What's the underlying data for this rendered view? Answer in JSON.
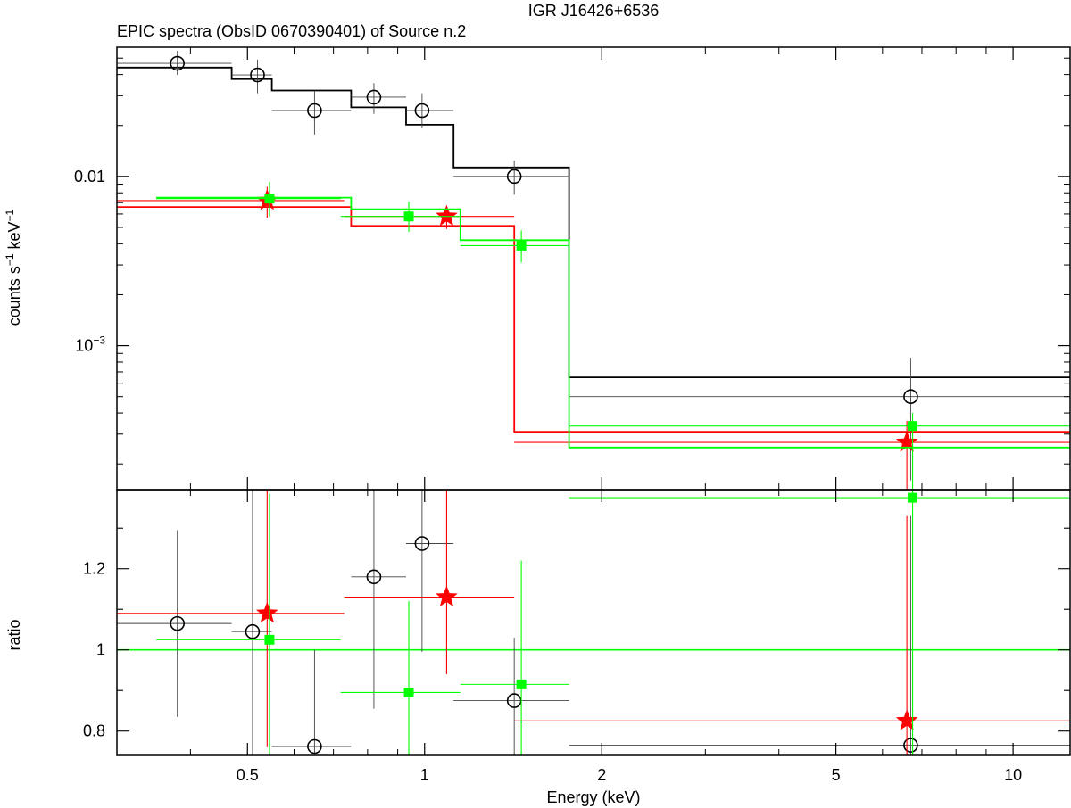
{
  "header": {
    "title": "IGR J16426+6536",
    "subtitle": "EPIC spectra (ObsID 0670390401) of Source n.2"
  },
  "axes": {
    "xlabel": "Energy (keV)",
    "top_ylabel_main": "counts s",
    "top_ylabel_sup1": "−1",
    "top_ylabel_mid": " keV",
    "top_ylabel_sup2": "−1",
    "bottom_ylabel": "ratio",
    "xticks": [
      "0.5",
      "1",
      "2",
      "5",
      "10"
    ],
    "top_yticks": [
      {
        "main": "0.01",
        "sup": ""
      },
      {
        "main": "10",
        "sup": "−3"
      }
    ],
    "bottom_yticks": [
      "1.2",
      "1",
      "0.8"
    ]
  },
  "colors": {
    "black": "#000000",
    "red": "#ff0000",
    "green": "#00ff00",
    "axis": "#000000"
  },
  "chart_data": [
    {
      "type": "scatter",
      "panel": "spectrum",
      "title": "EPIC spectra (ObsID 0670390401) of Source n.2",
      "xlabel": "Energy (keV)",
      "ylabel": "counts s−1 keV−1",
      "xscale": "log",
      "yscale": "log",
      "xlim": [
        0.3,
        12.5
      ],
      "ylim": [
        0.000141,
        0.058
      ],
      "grid": false,
      "series": [
        {
          "color": "#000000",
          "marker": "circle",
          "points": [
            {
              "x": 0.38,
              "xlo": 0.3,
              "xhi": 0.47,
              "y": 0.0466,
              "ylo": 0.0397,
              "yhi": 0.0552
            },
            {
              "x": 0.52,
              "xlo": 0.47,
              "xhi": 0.55,
              "y": 0.0398,
              "ylo": 0.031,
              "yhi": 0.049
            },
            {
              "x": 0.65,
              "xlo": 0.55,
              "xhi": 0.75,
              "y": 0.0245,
              "ylo": 0.0177,
              "yhi": 0.032
            },
            {
              "x": 0.82,
              "xlo": 0.75,
              "xhi": 0.93,
              "y": 0.0294,
              "ylo": 0.0234,
              "yhi": 0.0356
            },
            {
              "x": 0.99,
              "xlo": 0.93,
              "xhi": 1.12,
              "y": 0.0245,
              "ylo": 0.0192,
              "yhi": 0.031
            },
            {
              "x": 1.42,
              "xlo": 1.12,
              "xhi": 1.76,
              "y": 0.01,
              "ylo": 0.0078,
              "yhi": 0.0124
            },
            {
              "x": 6.7,
              "xlo": 1.76,
              "xhi": 12.5,
              "y": 0.0005,
              "ylo": 0.00016,
              "yhi": 0.00085
            }
          ],
          "model": {
            "edges": [
              0.3,
              0.47,
              0.55,
              0.75,
              0.93,
              1.12,
              1.76,
              12.5
            ],
            "values": [
              0.044,
              0.0376,
              0.0322,
              0.0256,
              0.0202,
              0.0113,
              0.00065
            ]
          }
        },
        {
          "color": "#ff0000",
          "marker": "star",
          "points": [
            {
              "x": 0.54,
              "xlo": 0.3,
              "xhi": 0.73,
              "y": 0.0072,
              "ylo": 0.0057,
              "yhi": 0.0087
            },
            {
              "x": 1.09,
              "xlo": 0.73,
              "xhi": 1.42,
              "y": 0.0058,
              "ylo": 0.0049,
              "yhi": 0.0067
            },
            {
              "x": 6.6,
              "xlo": 1.42,
              "xhi": 12.5,
              "y": 0.000268,
              "ylo": 0.000141,
              "yhi": 0.00036
            }
          ],
          "model": {
            "edges": [
              0.3,
              0.73,
              0.75,
              1.42,
              12.5
            ],
            "values": [
              0.0066,
              0.0066,
              0.0051,
              0.00031
            ]
          }
        },
        {
          "color": "#00ff00",
          "marker": "square",
          "points": [
            {
              "x": 0.545,
              "xlo": 0.35,
              "xhi": 0.72,
              "y": 0.0074,
              "ylo": 0.0058,
              "yhi": 0.0093
            },
            {
              "x": 0.94,
              "xlo": 0.72,
              "xhi": 1.15,
              "y": 0.0058,
              "ylo": 0.0047,
              "yhi": 0.0071
            },
            {
              "x": 1.46,
              "xlo": 1.15,
              "xhi": 1.76,
              "y": 0.0039,
              "ylo": 0.0031,
              "yhi": 0.0048
            },
            {
              "x": 6.75,
              "xlo": 1.76,
              "xhi": 12.5,
              "y": 0.000335,
              "ylo": 0.000141,
              "yhi": 0.0004
            }
          ],
          "model": {
            "edges": [
              0.35,
              0.75,
              1.15,
              1.76,
              12.5
            ],
            "values": [
              0.0075,
              0.0064,
              0.0042,
              0.00025
            ]
          }
        }
      ]
    },
    {
      "type": "scatter",
      "panel": "ratio",
      "xlabel": "Energy (keV)",
      "ylabel": "ratio",
      "xscale": "log",
      "yscale": "linear",
      "xlim": [
        0.3,
        12.5
      ],
      "ylim": [
        0.74,
        1.395
      ],
      "reference_line": 1,
      "grid": false,
      "series": [
        {
          "color": "#000000",
          "marker": "circle",
          "points": [
            {
              "x": 0.38,
              "xlo": 0.3,
              "xhi": 0.47,
              "y": 1.065,
              "ylo": 0.835,
              "yhi": 1.295
            },
            {
              "x": 0.51,
              "xlo": 0.47,
              "xhi": 0.55,
              "y": 1.045,
              "ylo": 0.74,
              "yhi": 1.395
            },
            {
              "x": 0.65,
              "xlo": 0.55,
              "xhi": 0.75,
              "y": 0.762,
              "ylo": 0.74,
              "yhi": 1.0
            },
            {
              "x": 0.82,
              "xlo": 0.75,
              "xhi": 0.93,
              "y": 1.18,
              "ylo": 0.855,
              "yhi": 1.395
            },
            {
              "x": 0.99,
              "xlo": 0.93,
              "xhi": 1.12,
              "y": 1.262,
              "ylo": 0.995,
              "yhi": 1.395
            },
            {
              "x": 1.42,
              "xlo": 1.12,
              "xhi": 1.76,
              "y": 0.875,
              "ylo": 0.74,
              "yhi": 1.03
            },
            {
              "x": 6.7,
              "xlo": 1.76,
              "xhi": 12.5,
              "y": 0.765,
              "ylo": 0.74,
              "yhi": 1.33
            }
          ]
        },
        {
          "color": "#ff0000",
          "marker": "star",
          "points": [
            {
              "x": 0.54,
              "xlo": 0.3,
              "xhi": 0.73,
              "y": 1.09,
              "ylo": 0.76,
              "yhi": 1.395
            },
            {
              "x": 1.09,
              "xlo": 0.73,
              "xhi": 1.42,
              "y": 1.13,
              "ylo": 0.94,
              "yhi": 1.395
            },
            {
              "x": 6.6,
              "xlo": 1.42,
              "xhi": 12.5,
              "y": 0.825,
              "ylo": 0.74,
              "yhi": 1.33
            }
          ]
        },
        {
          "color": "#00ff00",
          "marker": "square",
          "points": [
            {
              "x": 0.545,
              "xlo": 0.35,
              "xhi": 0.72,
              "y": 1.025,
              "ylo": 0.74,
              "yhi": 1.385
            },
            {
              "x": 0.94,
              "xlo": 0.72,
              "xhi": 1.15,
              "y": 0.895,
              "ylo": 0.74,
              "yhi": 1.12
            },
            {
              "x": 1.46,
              "xlo": 1.15,
              "xhi": 1.76,
              "y": 0.915,
              "ylo": 0.74,
              "yhi": 1.22
            },
            {
              "x": 6.75,
              "xlo": 1.76,
              "xhi": 12.5,
              "y": 1.375,
              "ylo": 0.74,
              "yhi": 1.395
            }
          ]
        }
      ]
    }
  ]
}
